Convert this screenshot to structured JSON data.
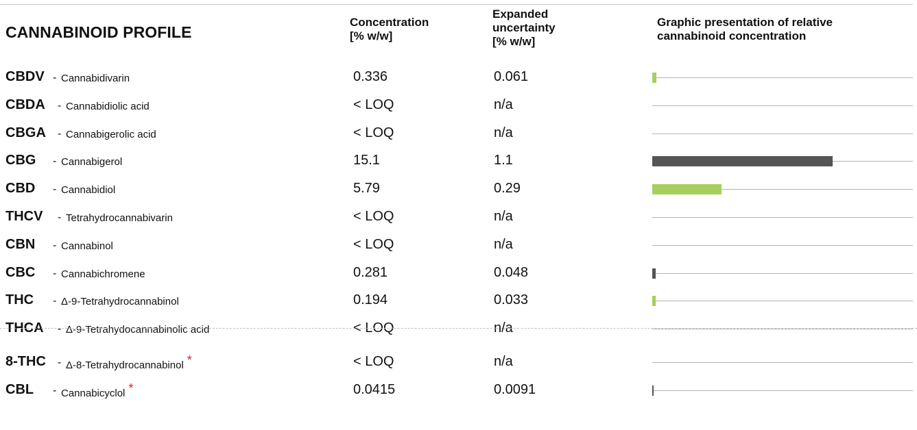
{
  "header": {
    "title": "CANNABINOID PROFILE",
    "concentration_line1": "Concentration",
    "concentration_line2": "[% w/w]",
    "uncertainty_line1": "Expanded",
    "uncertainty_line2": "uncertainty",
    "uncertainty_line3": "[% w/w]",
    "graph_line1": "Graphic presentation of relative",
    "graph_line2": "cannabinoid concentration"
  },
  "colors": {
    "cbd_family": "#a6cf5c",
    "thc_family": "#555555",
    "line": "#b4b4b4",
    "star": "#e0211a"
  },
  "chart_data": {
    "type": "bar",
    "orientation": "horizontal",
    "max_value": 15.1,
    "rows": [
      {
        "abbr": "CBDV",
        "name": "Cannabidivarin",
        "concentration": "0.336",
        "uncertainty": "0.061",
        "value": 0.336,
        "color": "#a6cf5c",
        "star": false
      },
      {
        "abbr": "CBDA",
        "name": "Cannabidiolic acid",
        "concentration": "< LOQ",
        "uncertainty": "n/a",
        "value": 0,
        "color": "#a6cf5c",
        "star": false
      },
      {
        "abbr": "CBGA",
        "name": "Cannabigerolic acid",
        "concentration": "< LOQ",
        "uncertainty": "n/a",
        "value": 0,
        "color": "#555555",
        "star": false
      },
      {
        "abbr": "CBG",
        "name": "Cannabigerol",
        "concentration": "15.1",
        "uncertainty": "1.1",
        "value": 15.1,
        "color": "#555555",
        "star": false
      },
      {
        "abbr": "CBD",
        "name": "Cannabidiol",
        "concentration": "5.79",
        "uncertainty": "0.29",
        "value": 5.79,
        "color": "#a6cf5c",
        "star": false
      },
      {
        "abbr": "THCV",
        "name": "Tetrahydrocannabivarin",
        "concentration": "< LOQ",
        "uncertainty": "n/a",
        "value": 0,
        "color": "#555555",
        "star": false
      },
      {
        "abbr": "CBN",
        "name": "Cannabinol",
        "concentration": "< LOQ",
        "uncertainty": "n/a",
        "value": 0,
        "color": "#555555",
        "star": false
      },
      {
        "abbr": "CBC",
        "name": "Cannabichromene",
        "concentration": "0.281",
        "uncertainty": "0.048",
        "value": 0.281,
        "color": "#555555",
        "star": false
      },
      {
        "abbr": "THC",
        "name": "Δ-9-Tetrahydrocannabinol",
        "concentration": "0.194",
        "uncertainty": "0.033",
        "value": 0.194,
        "color": "#a6cf5c",
        "star": false
      },
      {
        "abbr": "THCA",
        "name": "Δ-9-Tetrahydocannabinolic acid",
        "concentration": "< LOQ",
        "uncertainty": "n/a",
        "value": 0,
        "color": "#555555",
        "star": false
      },
      {
        "abbr": "8-THC",
        "name": "Δ-8-Tetrahydrocannabinol",
        "concentration": "< LOQ",
        "uncertainty": "n/a",
        "value": 0,
        "color": "#555555",
        "star": true
      },
      {
        "abbr": "CBL",
        "name": "Cannabicyclol",
        "concentration": "0.0415",
        "uncertainty": "0.0091",
        "value": 0.0415,
        "color": "#555555",
        "star": true
      }
    ]
  }
}
